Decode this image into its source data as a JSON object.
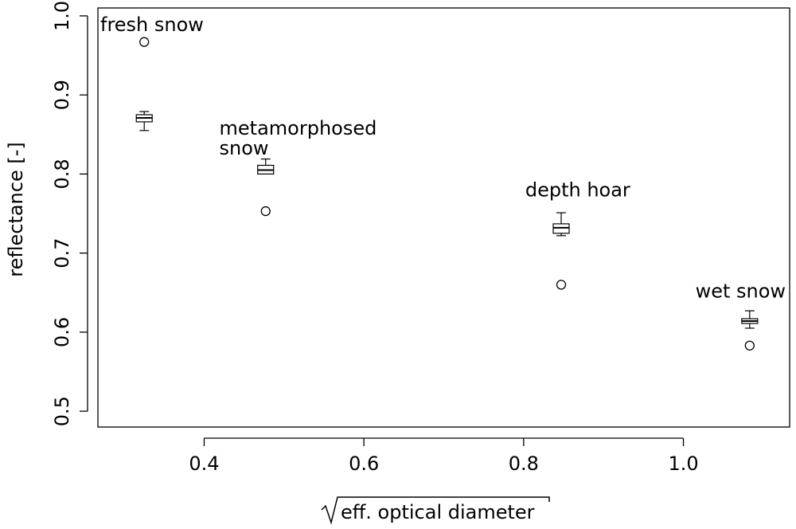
{
  "chart_data": {
    "type": "box",
    "title": "",
    "xlabel": "eff. optical diameter",
    "xlabel_sqrt": true,
    "ylabel": "reflectance [-]",
    "xlim": [
      0.267,
      1.133
    ],
    "ylim": [
      0.48,
      1.01
    ],
    "xticks": [
      {
        "value": 0.4,
        "label": "0.4"
      },
      {
        "value": 0.6,
        "label": "0.6"
      },
      {
        "value": 0.8,
        "label": "0.8"
      },
      {
        "value": 1.0,
        "label": "1.0"
      }
    ],
    "yticks": [
      {
        "value": 0.5,
        "label": "0.5"
      },
      {
        "value": 0.6,
        "label": "0.6"
      },
      {
        "value": 0.7,
        "label": "0.7"
      },
      {
        "value": 0.8,
        "label": "0.8"
      },
      {
        "value": 0.9,
        "label": "0.9"
      },
      {
        "value": 1.0,
        "label": "1.0"
      }
    ],
    "groups": [
      {
        "name": "fresh snow",
        "x": 0.325,
        "whisker_low": 0.855,
        "q1": 0.866,
        "median": 0.871,
        "q3": 0.875,
        "whisker_high": 0.879,
        "point": {
          "x": 0.325,
          "y": 0.967
        }
      },
      {
        "name": "metamorphosed snow",
        "x": 0.477,
        "whisker_low": 0.8,
        "q1": 0.8,
        "median": 0.805,
        "q3": 0.811,
        "whisker_high": 0.819,
        "point": {
          "x": 0.477,
          "y": 0.753
        }
      },
      {
        "name": "depth hoar",
        "x": 0.847,
        "whisker_low": 0.722,
        "q1": 0.725,
        "median": 0.732,
        "q3": 0.737,
        "whisker_high": 0.751,
        "point": {
          "x": 0.847,
          "y": 0.66
        }
      },
      {
        "name": "wet snow",
        "x": 1.083,
        "whisker_low": 0.605,
        "q1": 0.611,
        "median": 0.614,
        "q3": 0.617,
        "whisker_high": 0.627,
        "point": {
          "x": 1.083,
          "y": 0.583
        }
      }
    ],
    "annotations": [
      {
        "lines": [
          "fresh snow"
        ],
        "x": 0.267,
        "y": 0.989
      },
      {
        "lines": [
          "metamorphosed",
          "snow"
        ],
        "x": 0.416,
        "y": 0.858
      },
      {
        "lines": [
          "depth hoar"
        ],
        "x": 0.799,
        "y": 0.78
      },
      {
        "lines": [
          "wet snow"
        ],
        "x": 1.012,
        "y": 0.652
      }
    ],
    "grid": false,
    "legend": "none"
  }
}
